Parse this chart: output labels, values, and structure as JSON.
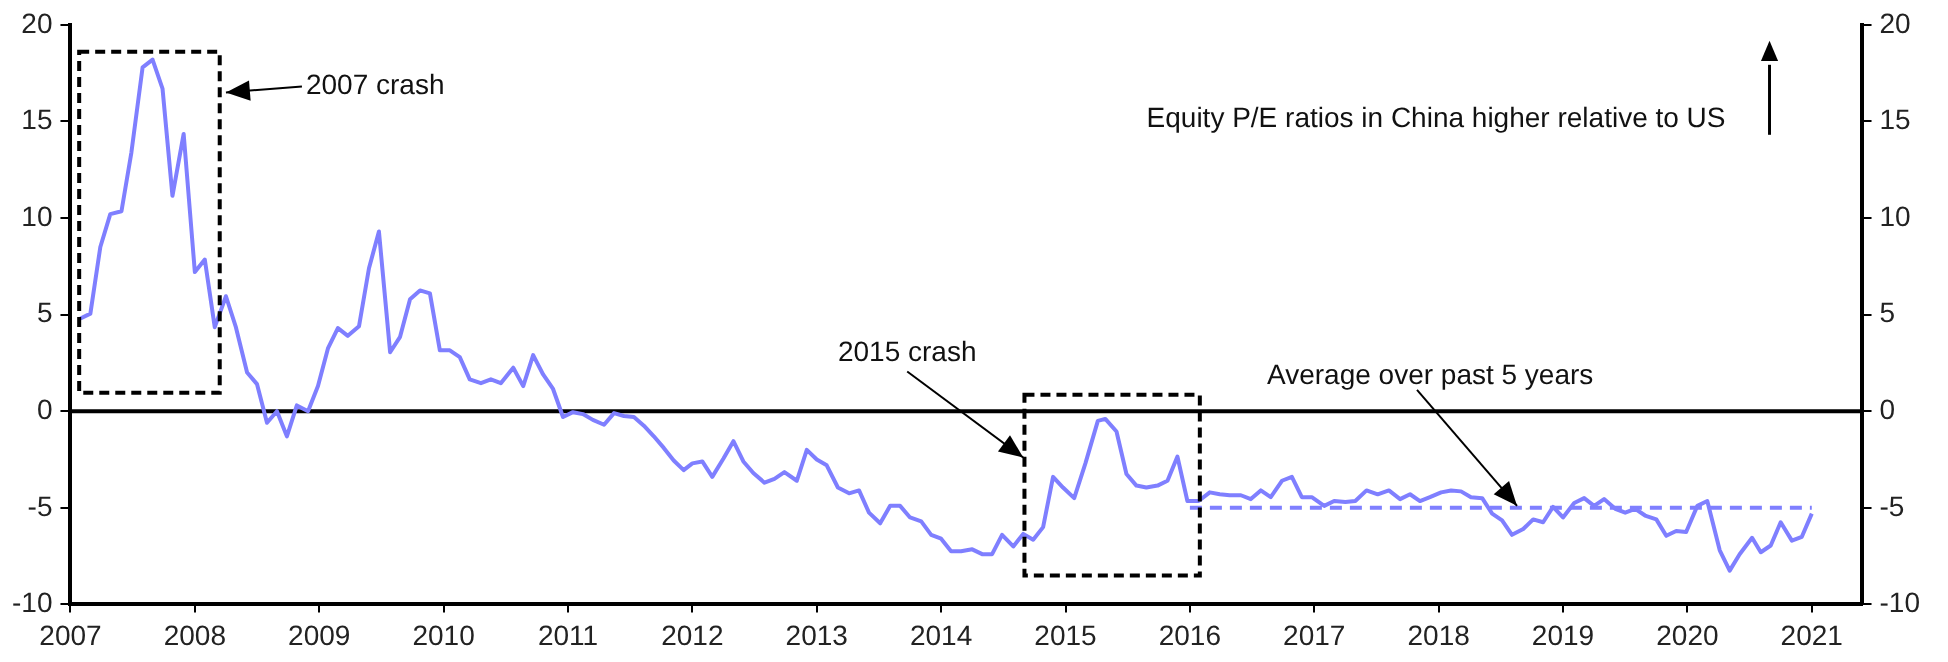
{
  "chart_data": {
    "type": "line",
    "marker": "none",
    "grid": false,
    "legend": false,
    "xlim": [
      2007,
      2021.4
    ],
    "xticks": [
      2007,
      2008,
      2009,
      2010,
      2011,
      2012,
      2013,
      2014,
      2015,
      2016,
      2017,
      2018,
      2019,
      2020,
      2021
    ],
    "ylim": [
      -10,
      20
    ],
    "yticks": [
      -10,
      -5,
      0,
      5,
      10,
      15,
      20
    ],
    "y2lim": [
      -10,
      20
    ],
    "y2ticks": [
      -10,
      -5,
      0,
      5,
      10,
      15,
      20
    ],
    "series": [
      {
        "color": "#7f7fff",
        "x": [
          2007.08,
          2007.16,
          2007.24,
          2007.32,
          2007.41,
          2007.49,
          2007.58,
          2007.66,
          2007.74,
          2007.82,
          2007.91,
          2008.0,
          2008.08,
          2008.16,
          2008.25,
          2008.33,
          2008.42,
          2008.5,
          2008.58,
          2008.66,
          2008.74,
          2008.82,
          2008.91,
          2008.99,
          2009.07,
          2009.15,
          2009.23,
          2009.32,
          2009.4,
          2009.48,
          2009.57,
          2009.65,
          2009.73,
          2009.81,
          2009.89,
          2009.97,
          2010.05,
          2010.13,
          2010.21,
          2010.3,
          2010.38,
          2010.46,
          2010.56,
          2010.64,
          2010.72,
          2010.8,
          2010.88,
          2010.96,
          2011.04,
          2011.12,
          2011.2,
          2011.29,
          2011.37,
          2011.45,
          2011.53,
          2011.61,
          2011.69,
          2011.77,
          2011.85,
          2011.93,
          2012.0,
          2012.08,
          2012.16,
          2012.25,
          2012.33,
          2012.41,
          2012.49,
          2012.58,
          2012.66,
          2012.74,
          2012.84,
          2012.92,
          2013.0,
          2013.08,
          2013.17,
          2013.26,
          2013.34,
          2013.42,
          2013.51,
          2013.59,
          2013.67,
          2013.75,
          2013.84,
          2013.92,
          2014.0,
          2014.08,
          2014.16,
          2014.25,
          2014.33,
          2014.41,
          2014.49,
          2014.58,
          2014.66,
          2014.74,
          2014.82,
          2014.9,
          2014.98,
          2015.07,
          2015.16,
          2015.26,
          2015.32,
          2015.41,
          2015.49,
          2015.57,
          2015.65,
          2015.74,
          2015.82,
          2015.9,
          2015.98,
          2016.07,
          2016.16,
          2016.24,
          2016.32,
          2016.41,
          2016.49,
          2016.57,
          2016.65,
          2016.74,
          2016.82,
          2016.9,
          2016.98,
          2017.08,
          2017.16,
          2017.25,
          2017.33,
          2017.42,
          2017.51,
          2017.6,
          2017.69,
          2017.77,
          2017.85,
          2017.93,
          2018.02,
          2018.1,
          2018.18,
          2018.26,
          2018.35,
          2018.43,
          2018.51,
          2018.59,
          2018.68,
          2018.76,
          2018.84,
          2018.92,
          2019.0,
          2019.09,
          2019.17,
          2019.25,
          2019.33,
          2019.42,
          2019.5,
          2019.58,
          2019.66,
          2019.75,
          2019.83,
          2019.91,
          2019.99,
          2020.08,
          2020.16,
          2020.26,
          2020.34,
          2020.42,
          2020.52,
          2020.59,
          2020.67,
          2020.75,
          2020.84,
          2020.92,
          2021.0
        ],
        "values": [
          4.8,
          5.05,
          8.5,
          10.2,
          10.35,
          13.4,
          17.8,
          18.2,
          16.7,
          11.15,
          14.35,
          7.2,
          7.85,
          4.35,
          5.95,
          4.35,
          2.0,
          1.4,
          -0.6,
          0,
          -1.3,
          0.3,
          0,
          1.3,
          3.25,
          4.3,
          3.9,
          4.4,
          7.4,
          9.3,
          3.05,
          3.85,
          5.8,
          6.25,
          6.1,
          3.15,
          3.15,
          2.8,
          1.65,
          1.45,
          1.65,
          1.45,
          2.25,
          1.3,
          2.9,
          1.9,
          1.15,
          -0.3,
          -0.05,
          -0.15,
          -0.45,
          -0.7,
          -0.1,
          -0.25,
          -0.3,
          -0.75,
          -1.3,
          -1.9,
          -2.55,
          -3.05,
          -2.7,
          -2.6,
          -3.4,
          -2.45,
          -1.55,
          -2.6,
          -3.2,
          -3.7,
          -3.5,
          -3.15,
          -3.6,
          -2.0,
          -2.5,
          -2.8,
          -3.95,
          -4.25,
          -4.1,
          -5.25,
          -5.8,
          -4.9,
          -4.9,
          -5.5,
          -5.7,
          -6.4,
          -6.6,
          -7.25,
          -7.25,
          -7.15,
          -7.4,
          -7.4,
          -6.4,
          -7.0,
          -6.35,
          -6.65,
          -6.0,
          -3.4,
          -3.95,
          -4.5,
          -2.7,
          -0.5,
          -0.4,
          -1.05,
          -3.25,
          -3.85,
          -3.95,
          -3.85,
          -3.6,
          -2.35,
          -4.65,
          -4.65,
          -4.2,
          -4.3,
          -4.35,
          -4.35,
          -4.55,
          -4.1,
          -4.45,
          -3.6,
          -3.4,
          -4.45,
          -4.45,
          -4.9,
          -4.65,
          -4.7,
          -4.65,
          -4.1,
          -4.3,
          -4.1,
          -4.55,
          -4.3,
          -4.65,
          -4.45,
          -4.2,
          -4.1,
          -4.15,
          -4.45,
          -4.5,
          -5.3,
          -5.65,
          -6.4,
          -6.1,
          -5.6,
          -5.75,
          -4.95,
          -5.5,
          -4.75,
          -4.5,
          -4.9,
          -4.55,
          -5.05,
          -5.25,
          -5.05,
          -5.4,
          -5.6,
          -6.45,
          -6.2,
          -6.25,
          -4.9,
          -4.65,
          -7.2,
          -8.25,
          -7.4,
          -6.55,
          -7.3,
          -6.95,
          -5.75,
          -6.7,
          -6.5,
          -5.3
        ]
      },
      {
        "color": "#7f7fff",
        "line_style": "dashed",
        "x": [
          2016.0,
          2021.0
        ],
        "values": [
          -5,
          -5
        ]
      }
    ],
    "ref_lines": [
      {
        "axis": "y",
        "value": 0,
        "color": "#000000"
      }
    ],
    "annotations": [
      "2007 crash",
      "2015 crash",
      {
        "text": "Average over past 5 years",
        "x": 2018.63,
        "y": -4.9
      },
      "Equity P/E ratios in China higher relative to US"
    ]
  }
}
